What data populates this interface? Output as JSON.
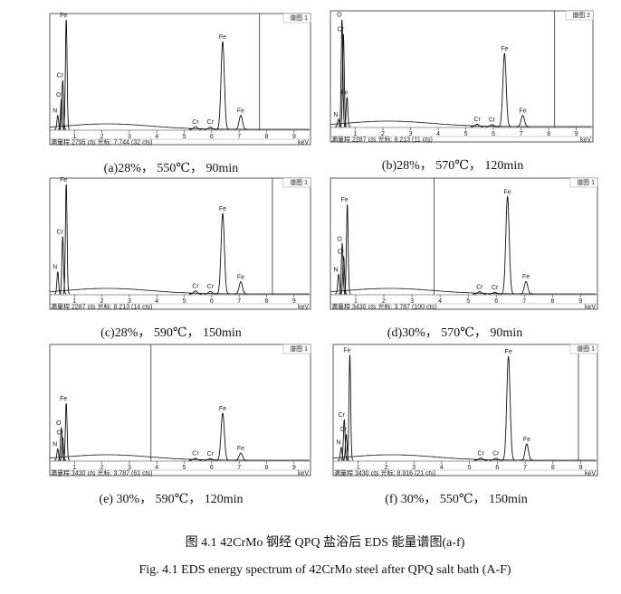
{
  "common": {
    "xlim": [
      0.1,
      9.6
    ],
    "xticks": [
      1,
      2,
      3,
      4,
      5,
      6,
      7,
      8,
      9
    ],
    "full_scale_label": "满量程",
    "unit": "cts",
    "cursor_label": "光标:",
    "axis_unit": "keV"
  },
  "panels": [
    {
      "caption": "(a)28%， 550℃， 90min",
      "spectrum_label": "谱图 1",
      "full_scale": 2795,
      "cursor": 7.744,
      "cursor_counts": "(32 cts)",
      "peaks": [
        {
          "label": "N",
          "x": 0.39,
          "y": 350
        },
        {
          "label": "O",
          "x": 0.52,
          "y": 750
        },
        {
          "label": "Cr",
          "x": 0.57,
          "y": 1230
        },
        {
          "label": "Fe",
          "x": 0.7,
          "y": 2750
        },
        {
          "label": "Cr",
          "x": 5.41,
          "y": 70
        },
        {
          "label": "Cr",
          "x": 5.95,
          "y": 60
        },
        {
          "label": "Fe",
          "x": 6.4,
          "y": 2200
        },
        {
          "label": "Fe",
          "x": 7.06,
          "y": 350
        }
      ]
    },
    {
      "caption": "(b)28%， 570℃， 120min",
      "spectrum_label": "谱图 2",
      "full_scale": 2287,
      "cursor": 8.213,
      "cursor_counts": "(11 cts)",
      "peaks": [
        {
          "label": "N",
          "x": 0.39,
          "y": 150
        },
        {
          "label": "O",
          "x": 0.52,
          "y": 2200
        },
        {
          "label": "Cr",
          "x": 0.57,
          "y": 1900
        },
        {
          "label": "Fe",
          "x": 0.7,
          "y": 600
        },
        {
          "label": "Cr",
          "x": 5.41,
          "y": 50
        },
        {
          "label": "Cr",
          "x": 5.95,
          "y": 40
        },
        {
          "label": "Fe",
          "x": 6.4,
          "y": 1500
        },
        {
          "label": "Fe",
          "x": 7.06,
          "y": 230
        }
      ]
    },
    {
      "caption": "(c)28%， 590℃， 150min",
      "spectrum_label": "谱图 1",
      "full_scale": 2287,
      "cursor": 8.213,
      "cursor_counts": "(14 cts)",
      "peaks": [
        {
          "label": "N",
          "x": 0.39,
          "y": 450
        },
        {
          "label": "Cr",
          "x": 0.57,
          "y": 1180
        },
        {
          "label": "Fe",
          "x": 0.7,
          "y": 2250
        },
        {
          "label": "Cr",
          "x": 5.41,
          "y": 60
        },
        {
          "label": "Cr",
          "x": 5.95,
          "y": 50
        },
        {
          "label": "Fe",
          "x": 6.4,
          "y": 1650
        },
        {
          "label": "Fe",
          "x": 7.06,
          "y": 250
        }
      ]
    },
    {
      "caption": "(d)30%， 570℃， 90min",
      "spectrum_label": "谱图 1",
      "full_scale": 3430,
      "cursor": 3.787,
      "cursor_counts": "(100 cts)",
      "peaks": [
        {
          "label": "N",
          "x": 0.39,
          "y": 600
        },
        {
          "label": "O",
          "x": 0.52,
          "y": 1550
        },
        {
          "label": "Cr",
          "x": 0.57,
          "y": 1150
        },
        {
          "label": "Fe",
          "x": 0.7,
          "y": 2750
        },
        {
          "label": "Cr",
          "x": 5.41,
          "y": 70
        },
        {
          "label": "Cr",
          "x": 5.95,
          "y": 50
        },
        {
          "label": "Fe",
          "x": 6.4,
          "y": 3000
        },
        {
          "label": "Fe",
          "x": 7.06,
          "y": 380
        }
      ]
    },
    {
      "caption": "(e) 30%， 590℃， 120min",
      "spectrum_label": "谱图 1",
      "full_scale": 3430,
      "cursor": 3.787,
      "cursor_counts": "(61 cts)",
      "peaks": [
        {
          "label": "N",
          "x": 0.39,
          "y": 350
        },
        {
          "label": "O",
          "x": 0.52,
          "y": 1000
        },
        {
          "label": "Cr",
          "x": 0.57,
          "y": 700
        },
        {
          "label": "Fe",
          "x": 0.7,
          "y": 1750
        },
        {
          "label": "Cr",
          "x": 5.41,
          "y": 60
        },
        {
          "label": "Cr",
          "x": 5.95,
          "y": 50
        },
        {
          "label": "Fe",
          "x": 6.4,
          "y": 1450
        },
        {
          "label": "Fe",
          "x": 7.06,
          "y": 220
        }
      ]
    },
    {
      "caption": "(f) 30%， 550℃， 150min",
      "spectrum_label": "谱图 1",
      "full_scale": 3430,
      "cursor": 8.916,
      "cursor_counts": "(21 cts)",
      "peaks": [
        {
          "label": "N",
          "x": 0.39,
          "y": 400
        },
        {
          "label": "Cr",
          "x": 0.5,
          "y": 1250
        },
        {
          "label": "Cr",
          "x": 0.57,
          "y": 800
        },
        {
          "label": "Fe",
          "x": 0.7,
          "y": 3250
        },
        {
          "label": "Cr",
          "x": 5.41,
          "y": 70
        },
        {
          "label": "Cr",
          "x": 5.95,
          "y": 60
        },
        {
          "label": "Fe",
          "x": 6.4,
          "y": 3200
        },
        {
          "label": "Fe",
          "x": 7.06,
          "y": 500
        }
      ]
    }
  ],
  "figure_caption_zh": "图 4.1 42CrMo 钢经 QPQ 盐浴后 EDS 能量谱图(a-f)",
  "figure_caption_en": "Fig. 4.1 EDS energy spectrum of 42CrMo steel after QPQ salt bath (A-F)"
}
